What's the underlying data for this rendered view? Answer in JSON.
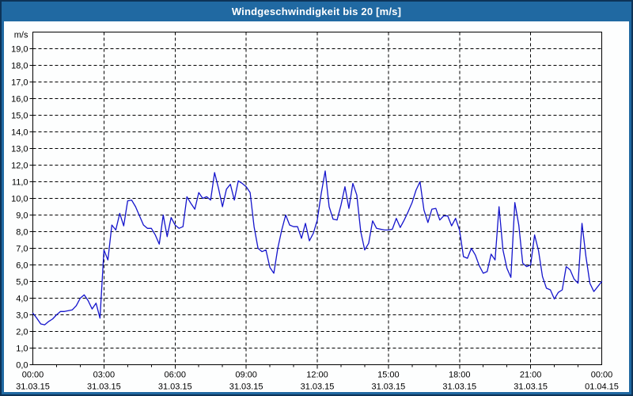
{
  "chart_data": {
    "type": "line",
    "title": "Windgeschwindigkeit bis 20 [m/s]",
    "ylabel": "m/s",
    "xlabel": "",
    "ylim": [
      0,
      20
    ],
    "ytick_step": 1.0,
    "ytick_labels": [
      "0,0",
      "1,0",
      "2,0",
      "3,0",
      "4,0",
      "5,0",
      "6,0",
      "7,0",
      "8,0",
      "9,0",
      "10,0",
      "11,0",
      "12,0",
      "13,0",
      "14,0",
      "15,0",
      "16,0",
      "17,0",
      "18,0",
      "19,0"
    ],
    "grid": "dashed-black-both-axes",
    "legend": "none",
    "x_axis": {
      "start_hour": 0,
      "end_hour": 24,
      "minor_tick_hours": 1,
      "major_tick_hours": 3
    },
    "xticks": [
      {
        "hour": 0,
        "time": "00:00",
        "date": "31.03.15"
      },
      {
        "hour": 3,
        "time": "03:00",
        "date": "31.03.15"
      },
      {
        "hour": 6,
        "time": "06:00",
        "date": "31.03.15"
      },
      {
        "hour": 9,
        "time": "09:00",
        "date": "31.03.15"
      },
      {
        "hour": 12,
        "time": "12:00",
        "date": "31.03.15"
      },
      {
        "hour": 15,
        "time": "15:00",
        "date": "31.03.15"
      },
      {
        "hour": 18,
        "time": "18:00",
        "date": "31.03.15"
      },
      {
        "hour": 21,
        "time": "21:00",
        "date": "31.03.15"
      },
      {
        "hour": 24,
        "time": "00:00",
        "date": "01.04.15"
      }
    ],
    "series": [
      {
        "name": "Windgeschwindigkeit",
        "unit": "m/s",
        "color": "#1414cc",
        "start_hour": 0,
        "interval_minutes": 10,
        "values": [
          3.1,
          2.8,
          2.45,
          2.4,
          2.6,
          2.75,
          3.0,
          3.2,
          3.2,
          3.25,
          3.3,
          3.55,
          4.0,
          4.2,
          3.85,
          3.35,
          3.7,
          2.8,
          6.9,
          6.3,
          8.4,
          8.1,
          9.1,
          8.35,
          9.85,
          9.9,
          9.5,
          8.95,
          8.4,
          8.2,
          8.2,
          7.8,
          7.25,
          9.0,
          7.7,
          8.85,
          8.4,
          8.2,
          8.3,
          10.1,
          9.7,
          9.35,
          10.35,
          10.0,
          10.1,
          9.9,
          11.55,
          10.6,
          9.5,
          10.55,
          10.85,
          9.9,
          11.05,
          10.9,
          10.7,
          10.35,
          8.3,
          7.0,
          6.8,
          6.9,
          5.85,
          5.5,
          7.0,
          8.1,
          9.0,
          8.4,
          8.3,
          8.3,
          7.6,
          8.5,
          7.45,
          7.9,
          8.7,
          10.3,
          11.65,
          9.5,
          8.75,
          8.7,
          9.6,
          10.7,
          9.4,
          10.9,
          10.2,
          8.0,
          6.9,
          7.3,
          8.65,
          8.2,
          8.15,
          8.1,
          8.1,
          8.15,
          8.8,
          8.25,
          8.7,
          9.2,
          9.75,
          10.5,
          11.0,
          9.3,
          8.55,
          9.35,
          9.4,
          8.7,
          8.95,
          8.95,
          8.35,
          8.8,
          8.1,
          6.5,
          6.4,
          7.0,
          6.6,
          5.95,
          5.5,
          5.6,
          6.65,
          6.3,
          9.5,
          6.9,
          5.8,
          5.25,
          9.75,
          8.4,
          6.1,
          5.9,
          6.0,
          7.8,
          6.85,
          5.3,
          4.6,
          4.5,
          3.95,
          4.35,
          4.5,
          5.9,
          5.7,
          5.15,
          4.9,
          8.5,
          6.5,
          4.9,
          4.4,
          4.7,
          5.0
        ]
      }
    ],
    "colors": {
      "titlebar_bg": "#2069a2",
      "titlebar_text": "#ffffff",
      "outer_border": "#0d3357",
      "plot_bg": "#fdfefe",
      "grid": "#000000",
      "axis": "#000000",
      "line": "#1414cc"
    }
  }
}
